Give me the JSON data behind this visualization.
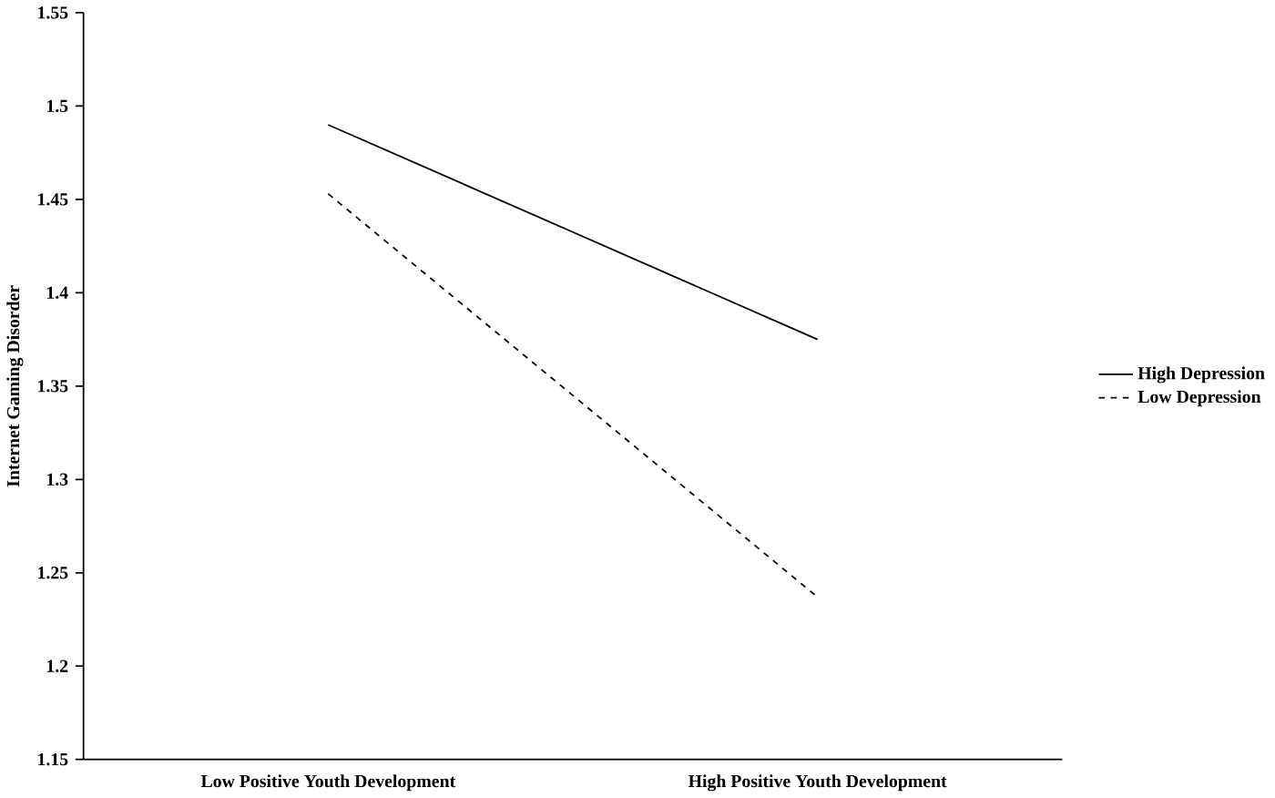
{
  "chart_data": {
    "type": "line",
    "ylabel": "Internet Gaming Disorder",
    "categories": [
      "Low Positive Youth Development",
      "High Positive Youth Development"
    ],
    "series": [
      {
        "name": "High Depression",
        "color": "#000000",
        "values": [
          1.49,
          1.375
        ],
        "line_style": "solid"
      },
      {
        "name": "Low Depression",
        "color": "#000000",
        "values": [
          1.453,
          1.237
        ],
        "line_style": "dashed"
      }
    ],
    "ylim": [
      1.15,
      1.55
    ],
    "yticks": [
      1.15,
      1.2,
      1.25,
      1.3,
      1.35,
      1.4,
      1.45,
      1.5,
      1.55
    ],
    "legend": "right",
    "grid": false,
    "marker": "none"
  }
}
